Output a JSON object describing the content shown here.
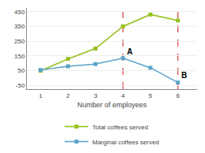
{
  "chart_data": {
    "type": "line",
    "x_label": "Number of employees",
    "x": [
      1,
      2,
      3,
      4,
      5,
      6
    ],
    "series": [
      {
        "name": "Total coffees served",
        "color": "#96c11e",
        "marker": "square",
        "values": [
          50,
          130,
          200,
          350,
          430,
          390
        ]
      },
      {
        "name": "Marginal coffees served",
        "color": "#5ba3c9",
        "marker": "square",
        "values": [
          55,
          80,
          95,
          135,
          70,
          -30
        ]
      }
    ],
    "xlim": [
      0.5,
      6.7
    ],
    "xticks": [
      1,
      2,
      3,
      4,
      5,
      6
    ],
    "ylim": [
      -75,
      475
    ],
    "yticks": [
      -50,
      50,
      150,
      250,
      350,
      450
    ],
    "grid": true,
    "legend": "bottom",
    "reference_lines": [
      {
        "x": 4,
        "color": "#d94040",
        "line_style": "dashed"
      },
      {
        "x": 6,
        "color": "#d94040",
        "line_style": "dashed"
      }
    ],
    "annotations": [
      {
        "x": 4.08,
        "y": 138,
        "text": "A"
      },
      {
        "x": 6.08,
        "y": -22,
        "text": "B"
      }
    ]
  }
}
